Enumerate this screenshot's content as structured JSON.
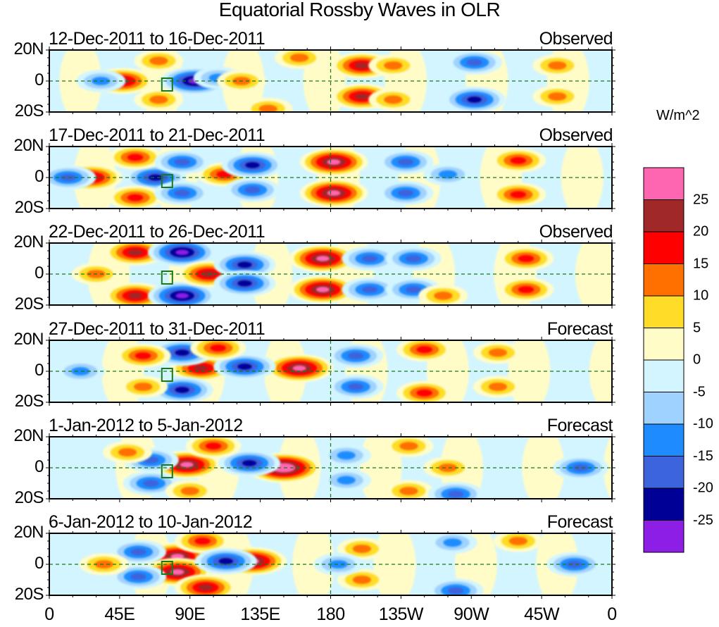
{
  "chart_data": {
    "type": "heatmap",
    "title": "Equatorial Rossby Waves in OLR",
    "xlabel": "",
    "ylabel": "",
    "x_range_deg_east": [
      0,
      360
    ],
    "y_range_deg": [
      -20,
      20
    ],
    "x_tick_labels": [
      "0",
      "45E",
      "90E",
      "135E",
      "180",
      "135W",
      "90W",
      "45W",
      "0"
    ],
    "y_tick_labels": [
      "20N",
      "0",
      "20S"
    ],
    "reference_lines": [
      "equator (dashed)",
      "180 meridian (dashed)"
    ],
    "colorbar": {
      "title": "W/m^2",
      "placement": "right",
      "levels": [
        25,
        20,
        15,
        10,
        5,
        0,
        -5,
        -10,
        -15,
        -20,
        -25
      ],
      "level_labels": [
        "25",
        "20",
        "15",
        "10",
        "5",
        "0",
        "-5",
        "-10",
        "-15",
        "-20",
        "-25"
      ],
      "colors": [
        "#ff66b2",
        "#a02828",
        "#ff0000",
        "#ff7000",
        "#ffdc28",
        "#fffcc8",
        "#d2f5ff",
        "#a0d2ff",
        "#1e8cff",
        "#3c64dc",
        "#000096",
        "#8c1ee6"
      ]
    },
    "panels": [
      {
        "period": "12-Dec-2011 to 16-Dec-2011",
        "kind": "Observed",
        "features": [
          {
            "lon": 47,
            "lat": 0,
            "value": 20
          },
          {
            "lon": 93,
            "lat": 0,
            "value": -25
          },
          {
            "lon": 33,
            "lat": 0,
            "value": -10
          },
          {
            "lon": 108,
            "lat": 2,
            "value": -10
          },
          {
            "lon": 123,
            "lat": 0,
            "value": 10
          },
          {
            "lon": 70,
            "lat": 13,
            "value": 10
          },
          {
            "lon": 70,
            "lat": -12,
            "value": 10
          },
          {
            "lon": 200,
            "lat": 10,
            "value": 20
          },
          {
            "lon": 200,
            "lat": -10,
            "value": 20
          },
          {
            "lon": 220,
            "lat": 10,
            "value": 10
          },
          {
            "lon": 220,
            "lat": -12,
            "value": 10
          },
          {
            "lon": 272,
            "lat": 12,
            "value": -15
          },
          {
            "lon": 272,
            "lat": -12,
            "value": -20
          },
          {
            "lon": 325,
            "lat": 10,
            "value": 10
          },
          {
            "lon": 325,
            "lat": -10,
            "value": 10
          },
          {
            "lon": 160,
            "lat": 15,
            "value": 10
          },
          {
            "lon": 140,
            "lat": -18,
            "value": 10
          }
        ]
      },
      {
        "period": "17-Dec-2011 to 21-Dec-2011",
        "kind": "Observed",
        "features": [
          {
            "lon": 27,
            "lat": 0,
            "value": 20
          },
          {
            "lon": 12,
            "lat": 0,
            "value": -15
          },
          {
            "lon": 68,
            "lat": 0,
            "value": -20
          },
          {
            "lon": 55,
            "lat": 13,
            "value": 15
          },
          {
            "lon": 55,
            "lat": -13,
            "value": 15
          },
          {
            "lon": 112,
            "lat": 2,
            "value": 15
          },
          {
            "lon": 85,
            "lat": 10,
            "value": -15
          },
          {
            "lon": 85,
            "lat": -10,
            "value": -15
          },
          {
            "lon": 130,
            "lat": 8,
            "value": -20
          },
          {
            "lon": 130,
            "lat": -8,
            "value": -15
          },
          {
            "lon": 182,
            "lat": 10,
            "value": 25
          },
          {
            "lon": 182,
            "lat": -10,
            "value": 25
          },
          {
            "lon": 228,
            "lat": 10,
            "value": -15
          },
          {
            "lon": 228,
            "lat": -10,
            "value": -15
          },
          {
            "lon": 300,
            "lat": 11,
            "value": 15
          },
          {
            "lon": 300,
            "lat": -11,
            "value": 15
          },
          {
            "lon": 255,
            "lat": 2,
            "value": -10
          }
        ]
      },
      {
        "period": "22-Dec-2011 to 26-Dec-2011",
        "kind": "Observed",
        "features": [
          {
            "lon": 55,
            "lat": 14,
            "value": 20
          },
          {
            "lon": 55,
            "lat": -14,
            "value": 20
          },
          {
            "lon": 30,
            "lat": 0,
            "value": 10
          },
          {
            "lon": 85,
            "lat": 14,
            "value": -25
          },
          {
            "lon": 85,
            "lat": -14,
            "value": -25
          },
          {
            "lon": 102,
            "lat": 0,
            "value": 20
          },
          {
            "lon": 125,
            "lat": 6,
            "value": -20
          },
          {
            "lon": 125,
            "lat": -6,
            "value": -20
          },
          {
            "lon": 175,
            "lat": 10,
            "value": 25
          },
          {
            "lon": 175,
            "lat": -10,
            "value": 25
          },
          {
            "lon": 205,
            "lat": 10,
            "value": -15
          },
          {
            "lon": 205,
            "lat": -10,
            "value": -15
          },
          {
            "lon": 233,
            "lat": 10,
            "value": -15
          },
          {
            "lon": 233,
            "lat": -10,
            "value": -15
          },
          {
            "lon": 305,
            "lat": 10,
            "value": 15
          },
          {
            "lon": 305,
            "lat": -10,
            "value": 15
          },
          {
            "lon": 252,
            "lat": -14,
            "value": 10
          }
        ]
      },
      {
        "period": "27-Dec-2011 to 31-Dec-2011",
        "kind": "Forecast",
        "features": [
          {
            "lon": 97,
            "lat": 2,
            "value": 20
          },
          {
            "lon": 160,
            "lat": 2,
            "value": 25
          },
          {
            "lon": 85,
            "lat": 12,
            "value": -20
          },
          {
            "lon": 85,
            "lat": -12,
            "value": -20
          },
          {
            "lon": 125,
            "lat": 3,
            "value": -20
          },
          {
            "lon": 60,
            "lat": 10,
            "value": 15
          },
          {
            "lon": 60,
            "lat": -10,
            "value": 10
          },
          {
            "lon": 108,
            "lat": 15,
            "value": 15
          },
          {
            "lon": 196,
            "lat": 10,
            "value": -15
          },
          {
            "lon": 196,
            "lat": -10,
            "value": -15
          },
          {
            "lon": 240,
            "lat": 14,
            "value": 15
          },
          {
            "lon": 240,
            "lat": -14,
            "value": 15
          },
          {
            "lon": 287,
            "lat": 12,
            "value": 10
          },
          {
            "lon": 287,
            "lat": -10,
            "value": 10
          },
          {
            "lon": 20,
            "lat": 0,
            "value": -10
          }
        ]
      },
      {
        "period": "1-Jan-2012 to 5-Jan-2012",
        "kind": "Forecast",
        "features": [
          {
            "lon": 88,
            "lat": 2,
            "value": 25
          },
          {
            "lon": 150,
            "lat": 0,
            "value": 30
          },
          {
            "lon": 65,
            "lat": 5,
            "value": -15
          },
          {
            "lon": 65,
            "lat": -10,
            "value": -15
          },
          {
            "lon": 128,
            "lat": 3,
            "value": -20
          },
          {
            "lon": 105,
            "lat": 14,
            "value": 15
          },
          {
            "lon": 90,
            "lat": -15,
            "value": 10
          },
          {
            "lon": 50,
            "lat": 10,
            "value": 10
          },
          {
            "lon": 190,
            "lat": 8,
            "value": -10
          },
          {
            "lon": 190,
            "lat": -8,
            "value": -10
          },
          {
            "lon": 340,
            "lat": 0,
            "value": -15
          },
          {
            "lon": 230,
            "lat": -15,
            "value": 10
          },
          {
            "lon": 230,
            "lat": 14,
            "value": 10
          },
          {
            "lon": 255,
            "lat": 0,
            "value": 10
          },
          {
            "lon": 260,
            "lat": -17,
            "value": -15
          }
        ]
      },
      {
        "period": "6-Jan-2012 to 10-Jan-2012",
        "kind": "Forecast",
        "features": [
          {
            "lon": 82,
            "lat": 5,
            "value": 25
          },
          {
            "lon": 82,
            "lat": -5,
            "value": 25
          },
          {
            "lon": 98,
            "lat": 15,
            "value": 15
          },
          {
            "lon": 100,
            "lat": -15,
            "value": 20
          },
          {
            "lon": 130,
            "lat": 2,
            "value": 25
          },
          {
            "lon": 57,
            "lat": 8,
            "value": -15
          },
          {
            "lon": 57,
            "lat": -8,
            "value": -15
          },
          {
            "lon": 113,
            "lat": 2,
            "value": -20
          },
          {
            "lon": 35,
            "lat": 0,
            "value": 10
          },
          {
            "lon": 200,
            "lat": 10,
            "value": 10
          },
          {
            "lon": 200,
            "lat": -10,
            "value": 10
          },
          {
            "lon": 260,
            "lat": -17,
            "value": -15
          },
          {
            "lon": 258,
            "lat": 14,
            "value": -10
          },
          {
            "lon": 336,
            "lat": 0,
            "value": -15
          },
          {
            "lon": 185,
            "lat": 0,
            "value": -10
          },
          {
            "lon": 300,
            "lat": 15,
            "value": 10
          }
        ]
      }
    ]
  }
}
